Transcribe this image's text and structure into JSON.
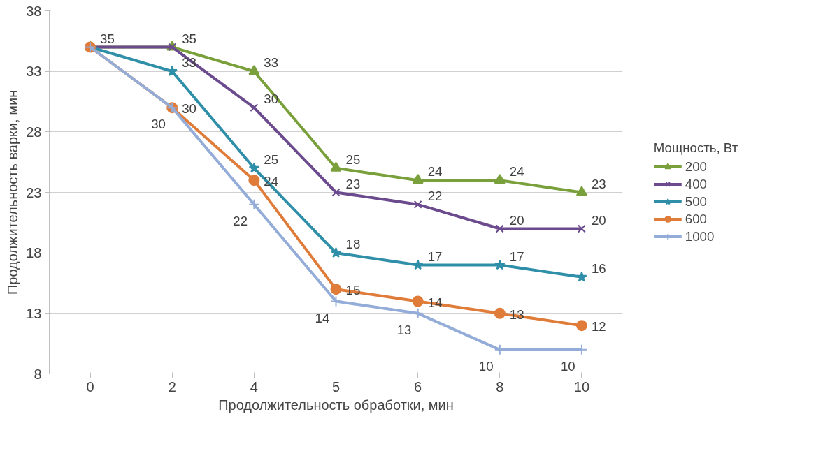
{
  "chart_data": {
    "type": "line",
    "xlabel": "Продолжительность обработки, мин",
    "ylabel": "Продолжительность варки, мин",
    "legend_title": "Мощность, Вт",
    "categories": [
      "0",
      "2",
      "4",
      "5",
      "6",
      "8",
      "10"
    ],
    "ylim": [
      8,
      38
    ],
    "yticks": [
      8,
      13,
      18,
      23,
      28,
      33,
      38
    ],
    "grid": "y",
    "legend": "right",
    "data_labels": true,
    "series": [
      {
        "name": "200",
        "color": "#7aa03c",
        "marker": "triangle",
        "values": [
          35,
          35,
          33,
          25,
          24,
          24,
          23
        ],
        "value_labels": [
          "35",
          "35",
          "33",
          "25",
          "24",
          "24",
          "23"
        ]
      },
      {
        "name": "400",
        "color": "#6b4a8e",
        "marker": "x",
        "values": [
          35,
          35,
          30,
          23,
          22,
          20,
          20
        ],
        "value_labels": [
          null,
          null,
          "30",
          "23",
          "22",
          "20",
          "20"
        ]
      },
      {
        "name": "500",
        "color": "#2f8fa8",
        "marker": "star",
        "values": [
          35,
          33,
          25,
          18,
          17,
          17,
          16
        ],
        "value_labels": [
          null,
          "33",
          "25",
          "18",
          "17",
          "17",
          "16"
        ]
      },
      {
        "name": "600",
        "color": "#e07c3a",
        "marker": "circle",
        "values": [
          35,
          30,
          24,
          15,
          14,
          13,
          12
        ],
        "value_labels": [
          null,
          "30",
          "24",
          "15",
          "14",
          "13",
          "12"
        ]
      },
      {
        "name": "1000",
        "color": "#93acd8",
        "marker": "cross",
        "values": [
          35,
          30,
          22,
          14,
          13,
          10,
          10
        ],
        "value_labels": [
          null,
          "30",
          "22",
          "14",
          "13",
          "10",
          "10"
        ]
      }
    ]
  }
}
